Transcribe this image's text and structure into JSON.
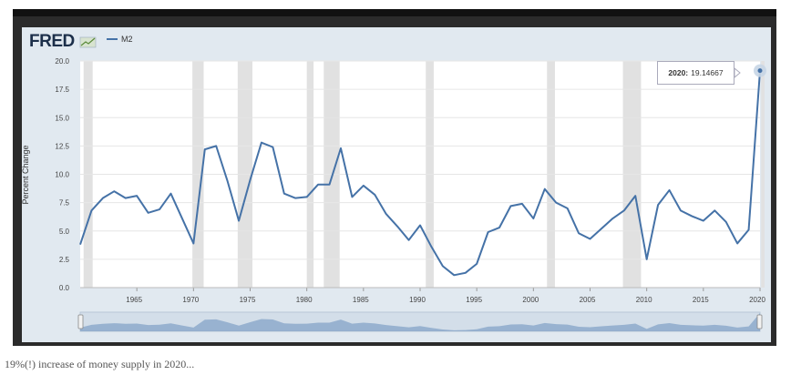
{
  "logo": {
    "text": "FRED"
  },
  "chart_data": {
    "type": "line",
    "title": "",
    "xlabel": "",
    "ylabel": "Percent Change",
    "ylim": [
      0,
      20
    ],
    "xlim": [
      1960,
      2020
    ],
    "yticks": [
      "0.0",
      "2.5",
      "5.0",
      "7.5",
      "10.0",
      "12.5",
      "15.0",
      "17.5",
      "20.0"
    ],
    "xticks": [
      "1965",
      "1970",
      "1975",
      "1980",
      "1985",
      "1990",
      "1995",
      "2000",
      "2005",
      "2010",
      "2015",
      "2020"
    ],
    "grid": true,
    "legend": "top-left",
    "series": [
      {
        "name": "M2",
        "color": "#4572a7",
        "x": [
          1960,
          1961,
          1962,
          1963,
          1964,
          1965,
          1966,
          1967,
          1968,
          1969,
          1970,
          1971,
          1972,
          1973,
          1974,
          1975,
          1976,
          1977,
          1978,
          1979,
          1980,
          1981,
          1982,
          1983,
          1984,
          1985,
          1986,
          1987,
          1988,
          1989,
          1990,
          1991,
          1992,
          1993,
          1994,
          1995,
          1996,
          1997,
          1998,
          1999,
          2000,
          2001,
          2002,
          2003,
          2004,
          2005,
          2006,
          2007,
          2008,
          2009,
          2010,
          2011,
          2012,
          2013,
          2014,
          2015,
          2016,
          2017,
          2018,
          2019,
          2020
        ],
        "values": [
          3.8,
          6.8,
          7.9,
          8.5,
          7.9,
          8.1,
          6.6,
          6.9,
          8.3,
          6.1,
          3.9,
          12.2,
          12.5,
          9.4,
          5.9,
          9.5,
          12.8,
          12.4,
          8.3,
          7.9,
          8.0,
          9.1,
          9.1,
          12.3,
          8.0,
          9.0,
          8.2,
          6.5,
          5.4,
          4.2,
          5.5,
          3.6,
          1.9,
          1.1,
          1.3,
          2.1,
          4.9,
          5.3,
          7.2,
          7.4,
          6.1,
          8.7,
          7.5,
          7.0,
          4.8,
          4.3,
          5.2,
          6.1,
          6.8,
          8.1,
          2.5,
          7.3,
          8.6,
          6.8,
          6.3,
          5.9,
          6.8,
          5.8,
          3.9,
          5.1,
          19.14667
        ]
      }
    ],
    "recessions": [
      [
        1960.3,
        1961.1
      ],
      [
        1969.9,
        1970.9
      ],
      [
        1973.9,
        1975.2
      ],
      [
        1980.0,
        1980.6
      ],
      [
        1981.5,
        1982.9
      ],
      [
        1990.5,
        1991.2
      ],
      [
        2001.2,
        2001.9
      ],
      [
        2007.9,
        2009.5
      ],
      [
        2020.1,
        2020.4
      ]
    ],
    "tooltip": {
      "label": "2020:",
      "value": "19.14667"
    }
  },
  "caption": "19%(!) increase of money supply in 2020..."
}
